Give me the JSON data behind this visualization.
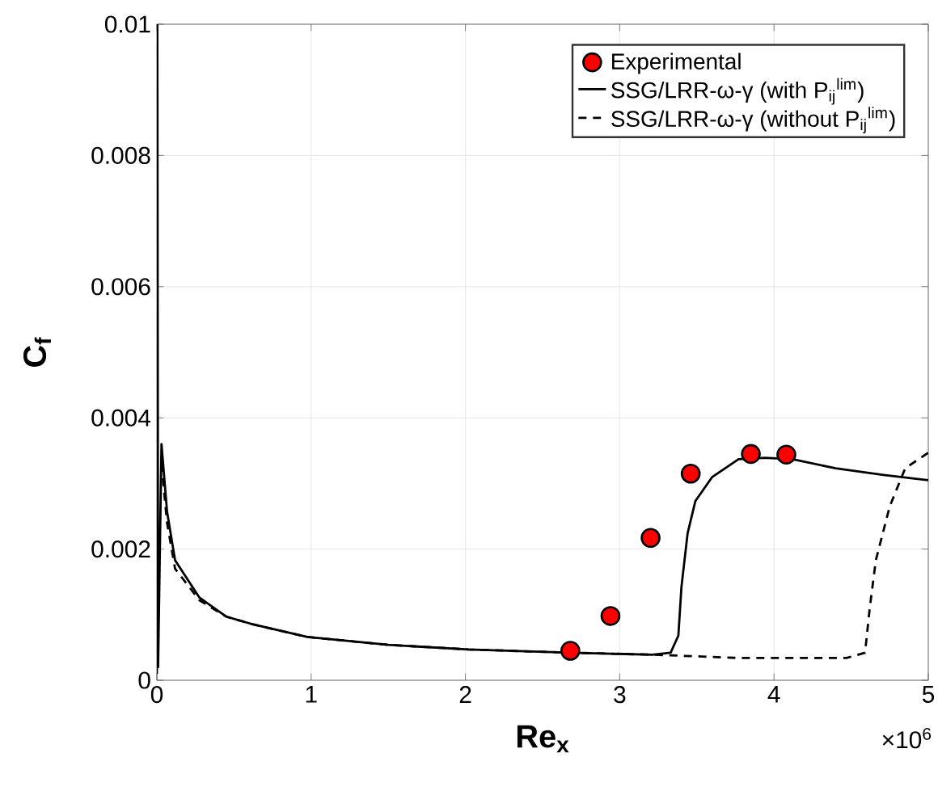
{
  "chart_data": {
    "type": "line",
    "xlabel": "Re$_{x}$",
    "ylabel": "C$_{f}$",
    "annotations": [
      "×10$^{6}$"
    ],
    "xlim": [
      0,
      5
    ],
    "ylim": [
      0,
      0.01
    ],
    "xticks": [
      0,
      1,
      2,
      3,
      4,
      5
    ],
    "yticks": [
      0,
      0.002,
      0.004,
      0.006,
      0.008,
      0.01
    ],
    "grid": true,
    "legend": "top right",
    "series": [
      {
        "name": "Experimental",
        "type": "scatter",
        "marker": "circle",
        "color": "#ff0000",
        "x": [
          2.68,
          2.94,
          3.2,
          3.46,
          3.85,
          4.08
        ],
        "values": [
          0.00045,
          0.00098,
          0.00217,
          0.00315,
          0.00345,
          0.00344
        ]
      },
      {
        "name": "SSG/LRR-ω-γ (with P$_{ij}$$^{lim}$)",
        "line_style": "solid",
        "color": "#000000",
        "x": [
          0,
          0.003,
          0.008,
          0.03,
          0.066,
          0.118,
          0.276,
          0.45,
          0.626,
          0.975,
          1.5,
          2.02,
          2.68,
          3.21,
          3.33,
          3.38,
          3.4,
          3.44,
          3.49,
          3.6,
          3.77,
          3.94,
          4.12,
          4.4,
          4.71,
          5.0
        ],
        "values": [
          0.0001,
          0.01,
          0.0002,
          0.0036,
          0.00257,
          0.00183,
          0.00126,
          0.00097,
          0.00085,
          0.00066,
          0.00054,
          0.00047,
          0.00042,
          0.00039,
          0.00042,
          0.00068,
          0.00142,
          0.00224,
          0.00273,
          0.0031,
          0.00337,
          0.00339,
          0.00337,
          0.00323,
          0.00313,
          0.00305
        ]
      },
      {
        "name": "SSG/LRR-ω-γ (without P$_{ij}$$^{lim}$)",
        "line_style": "dashed",
        "color": "#000000",
        "x": [
          0.03,
          0.066,
          0.118,
          0.276,
          0.45,
          0.626,
          0.975,
          1.5,
          2.02,
          2.68,
          3.21,
          3.33,
          3.77,
          4.47,
          4.59,
          4.62,
          4.66,
          4.75,
          4.85,
          5.0
        ],
        "values": [
          0.0033,
          0.0024,
          0.0017,
          0.00122,
          0.00097,
          0.00085,
          0.00066,
          0.00054,
          0.00047,
          0.00042,
          0.00039,
          0.00038,
          0.00034,
          0.00034,
          0.00042,
          0.00109,
          0.00183,
          0.00265,
          0.00323,
          0.00347
        ]
      }
    ]
  }
}
